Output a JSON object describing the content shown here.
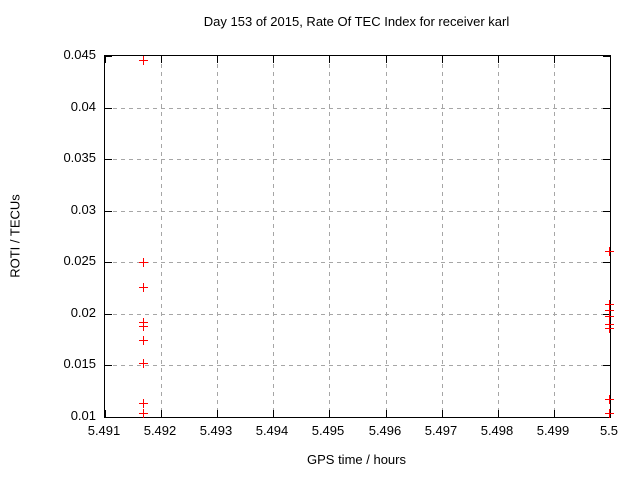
{
  "chart_data": {
    "type": "scatter",
    "title": "Day 153 of 2015, Rate Of TEC Index for receiver karl",
    "xlabel": "GPS time / hours",
    "ylabel": "ROTI / TECUs",
    "xlim": [
      5.491,
      5.5
    ],
    "ylim": [
      0.01,
      0.045
    ],
    "xticks": [
      5.491,
      5.492,
      5.493,
      5.494,
      5.495,
      5.496,
      5.497,
      5.498,
      5.499,
      5.5
    ],
    "xtick_labels": [
      "5.491",
      "5.492",
      "5.493",
      "5.494",
      "5.495",
      "5.496",
      "5.497",
      "5.498",
      "5.499",
      "5.5"
    ],
    "yticks": [
      0.01,
      0.015,
      0.02,
      0.025,
      0.03,
      0.035,
      0.04,
      0.045
    ],
    "ytick_labels": [
      "0.01",
      "0.015",
      "0.02",
      "0.025",
      "0.03",
      "0.035",
      "0.04",
      "0.045"
    ],
    "grid": true,
    "legend": "none",
    "marker": "plus",
    "marker_color": "#ff0000",
    "series": [
      {
        "name": "roti-points",
        "points": [
          {
            "x": 5.4917,
            "y": 0.0445
          },
          {
            "x": 5.4917,
            "y": 0.0249
          },
          {
            "x": 5.4917,
            "y": 0.0225
          },
          {
            "x": 5.4917,
            "y": 0.0191
          },
          {
            "x": 5.4917,
            "y": 0.0187
          },
          {
            "x": 5.4917,
            "y": 0.0174
          },
          {
            "x": 5.4917,
            "y": 0.0151
          },
          {
            "x": 5.4917,
            "y": 0.0113
          },
          {
            "x": 5.4917,
            "y": 0.0103
          },
          {
            "x": 5.5,
            "y": 0.026
          },
          {
            "x": 5.5,
            "y": 0.0209
          },
          {
            "x": 5.5,
            "y": 0.0203
          },
          {
            "x": 5.5,
            "y": 0.0197
          },
          {
            "x": 5.5,
            "y": 0.0189
          },
          {
            "x": 5.5,
            "y": 0.0185
          },
          {
            "x": 5.5,
            "y": 0.0116
          },
          {
            "x": 5.5,
            "y": 0.0103
          }
        ]
      }
    ]
  }
}
